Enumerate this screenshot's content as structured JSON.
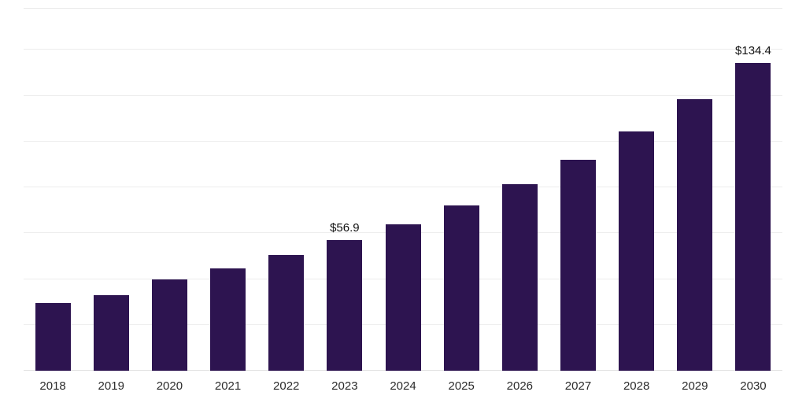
{
  "chart_data": {
    "type": "bar",
    "title": "",
    "xlabel": "",
    "ylabel": "",
    "categories": [
      "2018",
      "2019",
      "2020",
      "2021",
      "2022",
      "2023",
      "2024",
      "2025",
      "2026",
      "2027",
      "2028",
      "2029",
      "2030"
    ],
    "values": [
      29.5,
      33.0,
      40.0,
      44.5,
      50.5,
      56.9,
      64.0,
      72.0,
      81.5,
      92.0,
      104.5,
      118.5,
      134.4
    ],
    "data_labels": [
      "",
      "",
      "",
      "",
      "",
      "$56.9",
      "",
      "",
      "",
      "",
      "",
      "",
      "$134.4"
    ],
    "ylim": [
      0,
      158
    ],
    "gridline_step": 20,
    "grid": "horizontal",
    "legend": "none",
    "bar_color": "#2d1450",
    "gridline_color": "#ededed",
    "label_color": "#111111",
    "tick_color": "#2b2b2b"
  }
}
